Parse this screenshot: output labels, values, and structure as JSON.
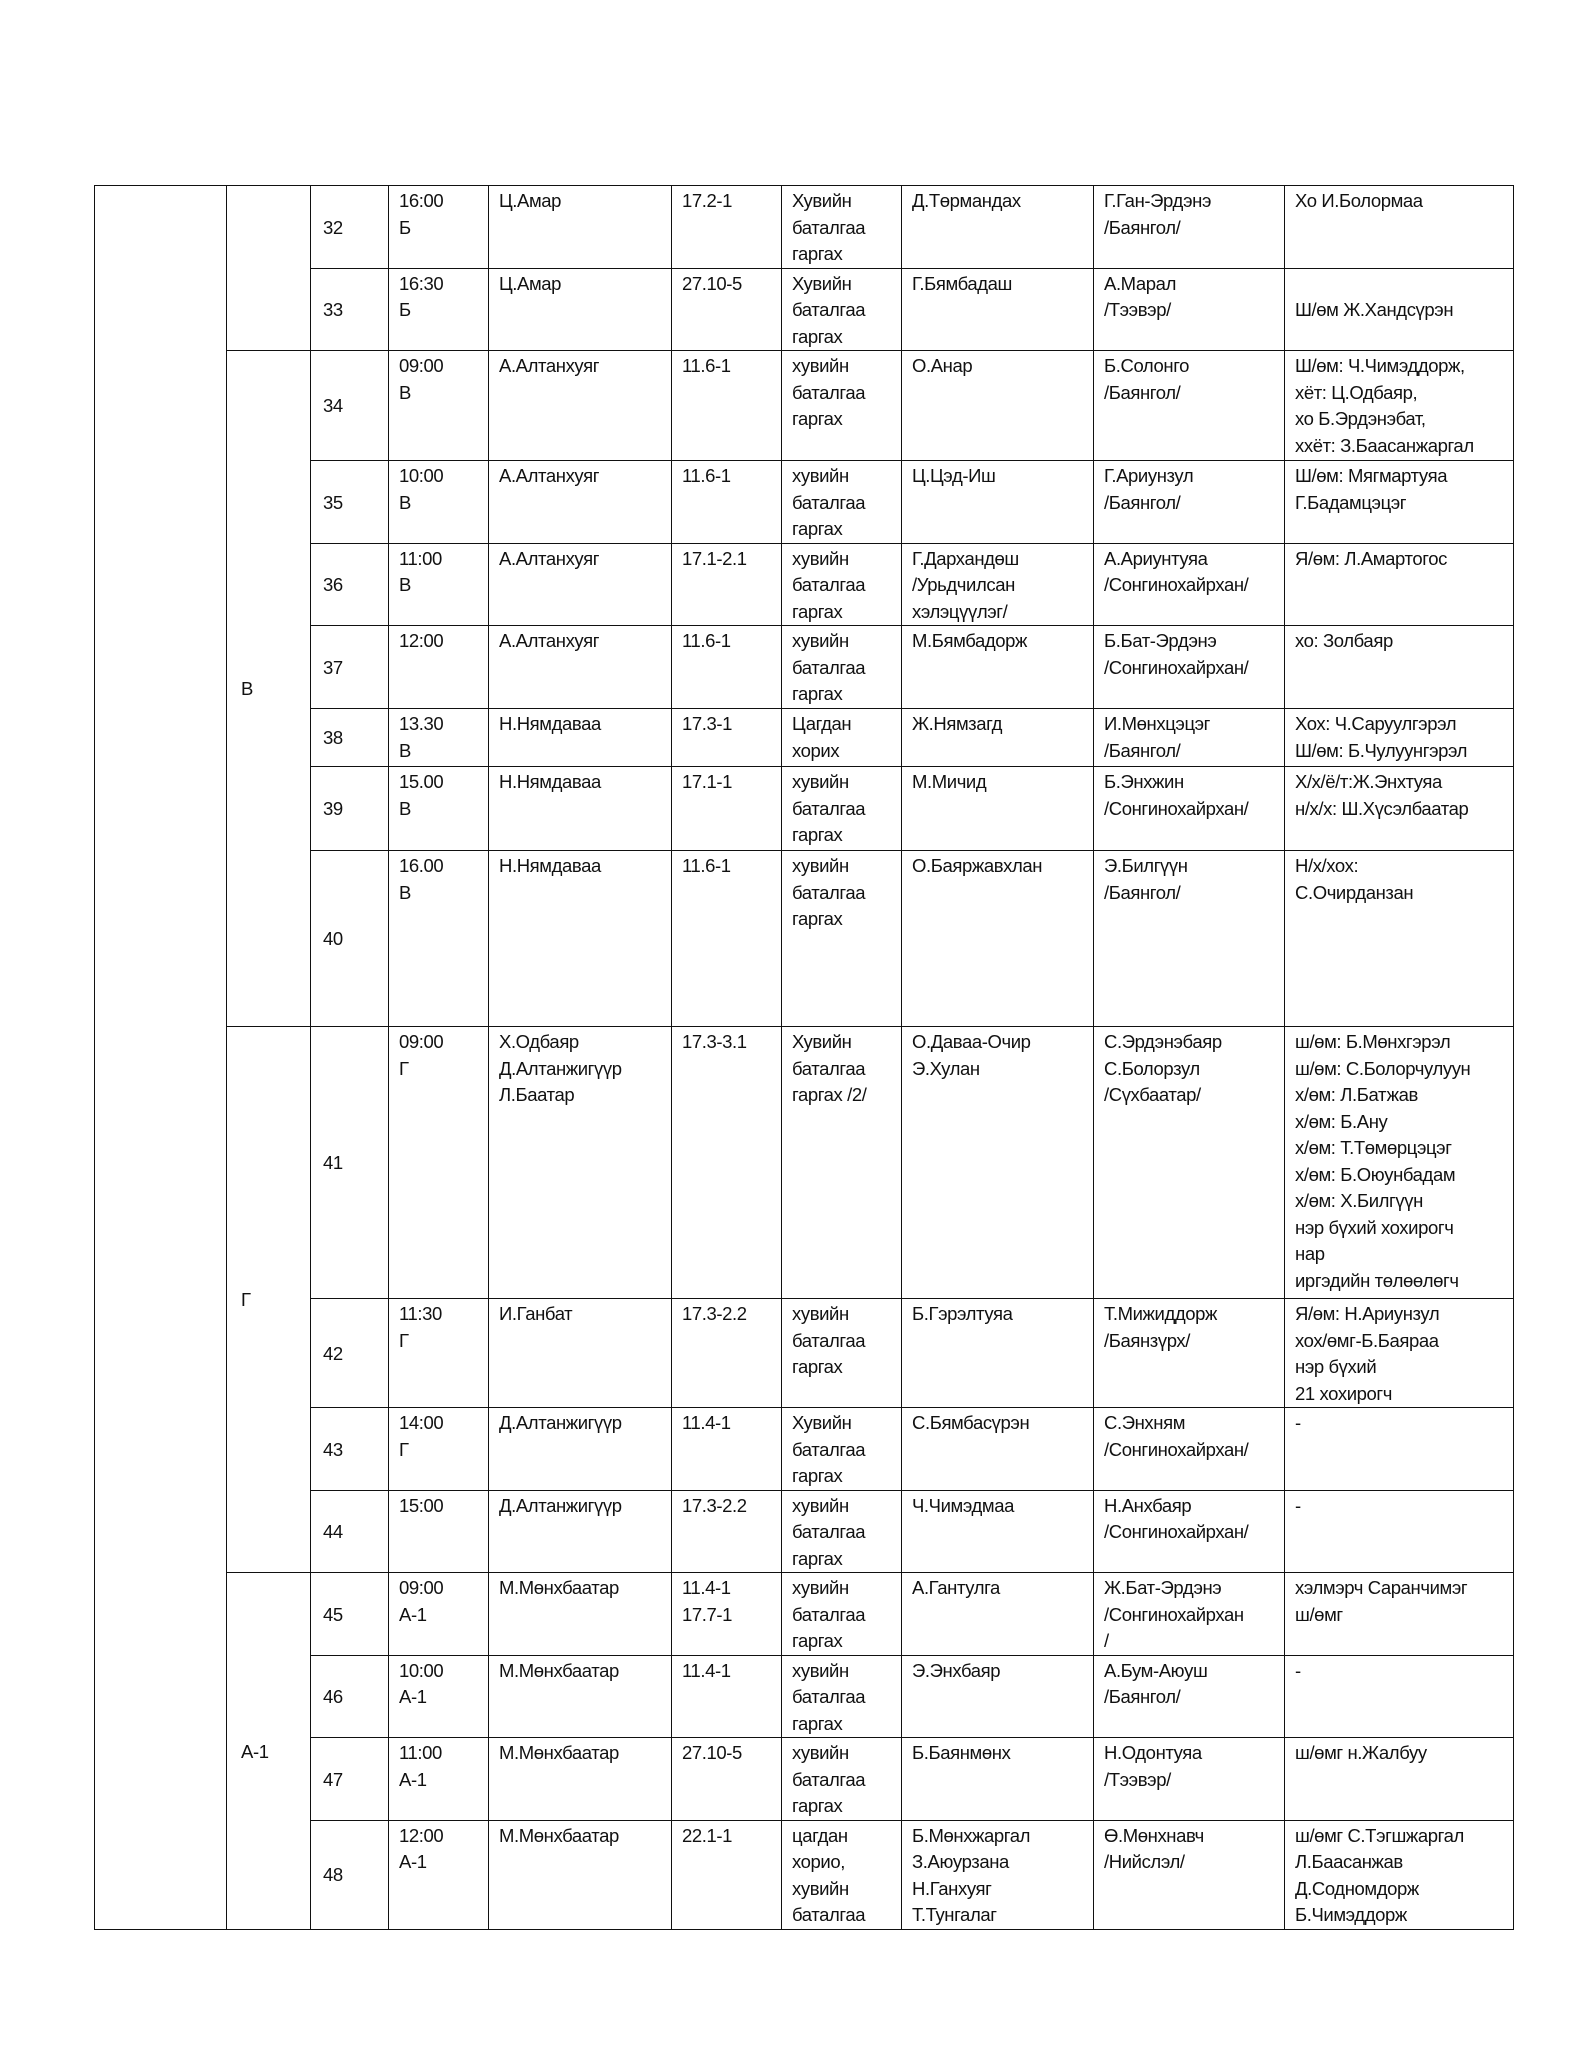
{
  "groups": [
    {
      "label": "",
      "rows": [
        0,
        1
      ]
    },
    {
      "label": "В",
      "rows": [
        2,
        3,
        4,
        5,
        6,
        7,
        8
      ]
    },
    {
      "label": "Г",
      "rows": [
        9,
        10,
        11,
        12
      ]
    },
    {
      "label": "А-1",
      "rows": [
        13,
        14,
        15,
        16
      ]
    }
  ],
  "rows": [
    {
      "no": "32",
      "time": "16:00\nБ",
      "judge": "Ц.Амар",
      "article": "17.2-1",
      "measure": "Хувийн\nбаталгаа\nгаргах",
      "defendant": "Д.Төрмандах",
      "prosecutor": "Г.Ган-Эрдэнэ\n/Баянгол/",
      "participants": "Хо И.Болормаа"
    },
    {
      "no": "33",
      "time": "16:30\nБ",
      "judge": "Ц.Амар",
      "article": "27.10-5",
      "measure": "Хувийн\nбаталгаа\nгаргах",
      "defendant": "Г.Бямбадаш",
      "prosecutor": "А.Марал\n/Тээвэр/",
      "participants": "\nШ/өм Ж.Хандсүрэн"
    },
    {
      "no": "34",
      "time": "09:00\nВ",
      "judge": "А.Алтанхуяг",
      "article": "11.6-1",
      "measure": "хувийн\nбаталгаа\nгаргах",
      "defendant": "О.Анар",
      "prosecutor": "Б.Солонго\n/Баянгол/",
      "participants": "Ш/өм: Ч.Чимэддорж,\nхёт: Ц.Одбаяр,\nхо Б.Эрдэнэбат,\nххёт: З.Баасанжаргал"
    },
    {
      "no": "35",
      "time": "10:00\nВ",
      "judge": "А.Алтанхуяг",
      "article": "11.6-1",
      "measure": "хувийн\nбаталгаа\nгаргах",
      "defendant": "Ц.Цэд-Иш",
      "prosecutor": "Г.Ариунзул\n/Баянгол/",
      "participants": "Ш/өм: Мягмартуяа\nГ.Бадамцэцэг"
    },
    {
      "no": "36",
      "time": "11:00\n В",
      "judge": "А.Алтанхуяг",
      "article": "17.1-2.1",
      "measure": "хувийн\nбаталгаа\nгаргах",
      "defendant": "Г.Дархандөш\n/Урьдчилсан\nхэлэцүүлэг/",
      "prosecutor": "А.Ариунтуяа\n/Сонгинохайрхан/",
      "participants": "Я/өм: Л.Амартогос"
    },
    {
      "no": "37",
      "time": "12:00",
      "judge": "А.Алтанхуяг",
      "article": "11.6-1",
      "measure": "хувийн\nбаталгаа\nгаргах",
      "defendant": "М.Бямбадорж",
      "prosecutor": "Б.Бат-Эрдэнэ\n/Сонгинохайрхан/",
      "participants": "хо: Золбаяр"
    },
    {
      "no": "38",
      "time": "13.30\nВ",
      "judge": "Н.Нямдаваа",
      "article": "17.3-1",
      "measure": "Цагдан\n хорих",
      "defendant": "Ж.Нямзагд",
      "prosecutor": "И.Мөнхцэцэг\n/Баянгол/",
      "participants": "Хох: Ч.Саруулгэрэл\nШ/өм: Б.Чулуунгэрэл"
    },
    {
      "no": "39",
      "time": "15.00\nВ",
      "judge": "Н.Нямдаваа",
      "article": "17.1-1",
      "measure": "хувийн\nбаталгаа\nгаргах",
      "defendant": "М.Мичид",
      "prosecutor": "Б.Энхжин\n/Сонгинохайрхан/",
      "participants": "Х/х/ё/т:Ж.Энхтуяа\nн/х/х: Ш.Хүсэлбаатар"
    },
    {
      "no": "40",
      "time": "16.00\nВ",
      "judge": "Н.Нямдаваа",
      "article": "11.6-1",
      "measure": "хувийн\nбаталгаа\nгаргах",
      "defendant": "О.Баяржавхлан",
      "prosecutor": "Э.Билгүүн\n/Баянгол/",
      "participants": "Н/х/хох:\nС.Очирданзан"
    },
    {
      "no": "41",
      "time": "09:00\nГ",
      "judge": "Х.Одбаяр\nД.Алтанжигүүр\nЛ.Баатар",
      "article": "17.3-3.1",
      "measure": "Хувийн\nбаталгаа\nгаргах /2/",
      "defendant": "О.Даваа-Очир\nЭ.Хулан",
      "prosecutor": "С.Эрдэнэбаяр\nС.Болорзул\n/Сүхбаатар/",
      "participants": "ш/өм: Б.Мөнхгэрэл\nш/өм: С.Болорчулуун\nх/өм: Л.Батжав\nх/өм: Б.Ану\nх/өм: Т.Төмөрцэцэг\nх/өм: Б.Оюунбадам\nх/өм: Х.Билгүүн\nнэр бүхий хохирогч\nнар\nиргэдийн төлөөлөгч"
    },
    {
      "no": "42",
      "time": "11:30\nГ",
      "judge": "И.Ганбат",
      "article": "17.3-2.2",
      "measure": "хувийн\nбаталгаа\nгаргах",
      "defendant": "Б.Гэрэлтуяа",
      "prosecutor": "Т.Мижиддорж\n/Баянзүрх/",
      "participants": "Я/өм: Н.Ариунзул\nхох/өмг-Б.Баяраа\nнэр бүхий\n21 хохирогч"
    },
    {
      "no": "43",
      "time": "14:00\nГ",
      "judge": "Д.Алтанжигүүр",
      "article": "11.4-1",
      "measure": "Хувийн\nбаталгаа\nгаргах",
      "defendant": "С.Бямбасүрэн",
      "prosecutor": "С.Энхням\n/Сонгинохайрхан/",
      "participants": "-"
    },
    {
      "no": "44",
      "time": "15:00",
      "judge": "Д.Алтанжигүүр",
      "article": "17.3-2.2",
      "measure": "хувийн\nбаталгаа\nгаргах",
      "defendant": "Ч.Чимэдмаа",
      "prosecutor": "Н.Анхбаяр\n/Сонгинохайрхан/",
      "participants": "-"
    },
    {
      "no": "45",
      "time": "09:00\nА-1",
      "judge": "М.Мөнхбаатар",
      "article": "11.4-1\n17.7-1",
      "measure": "хувийн\nбаталгаа\nгаргах",
      "defendant": "А.Гантулга",
      "prosecutor": "Ж.Бат-Эрдэнэ\n/Сонгинохайрхан\n/",
      "participants": "хэлмэрч Саранчимэг\nш/өмг"
    },
    {
      "no": "46",
      "time": "10:00\nА-1",
      "judge": "М.Мөнхбаатар",
      "article": "11.4-1",
      "measure": "хувийн\nбаталгаа\nгаргах",
      "defendant": "Э.Энхбаяр",
      "prosecutor": "А.Бум-Аюуш\n/Баянгол/",
      "participants": "-"
    },
    {
      "no": "47",
      "time": "11:00\nА-1",
      "judge": "М.Мөнхбаатар",
      "article": "27.10-5",
      "measure": "хувийн\nбаталгаа\nгаргах",
      "defendant": "Б.Баянмөнх",
      "prosecutor": "Н.Одонтуяа\n/Тээвэр/",
      "participants": "ш/өмг н.Жалбуу"
    },
    {
      "no": "48",
      "time": "12:00\nА-1",
      "judge": "М.Мөнхбаатар",
      "article": "22.1-1",
      "measure": "цагдан\nхорио,\nхувийн\nбаталгаа",
      "defendant": "Б.Мөнхжаргал\nЗ.Аюурзана\nН.Ганхуяг\nТ.Тунгалаг",
      "prosecutor": "Ө.Мөнхнавч\n/Нийслэл/",
      "participants": "ш/өмг С.Тэгшжаргал\nЛ.Баасанжав\nД.Содномдорж\nБ.Чимэддорж"
    }
  ]
}
